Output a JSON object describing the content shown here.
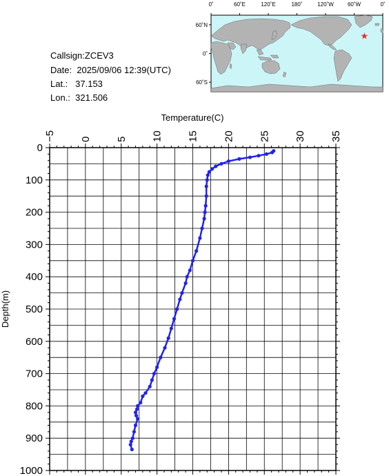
{
  "info": {
    "callsign_label": "Callsign:",
    "callsign": "ZCEV3",
    "date_label": "Date:",
    "date": "2025/09/06 12:39(UTC)",
    "lat_label": "Lat.:",
    "lat": "37.153",
    "lon_label": "Lon.:",
    "lon": "321.506"
  },
  "map": {
    "lon_ticks": [
      "0˚",
      "60˚E",
      "120˚E",
      "180˚",
      "120˚W",
      "60˚W",
      "0˚"
    ],
    "lat_ticks": [
      "60˚N",
      "0˚",
      "60˚S"
    ],
    "ocean_color": "#ccf5f8",
    "land_color": "#b3b3b3",
    "marker_color": "#ff2020",
    "marker_lat": 37.153,
    "marker_lon": 321.506
  },
  "chart_data": {
    "type": "line",
    "xlabel": "Temperature(C)",
    "ylabel": "Depth(m)",
    "xlim": [
      -5,
      35
    ],
    "ylim": [
      1000,
      0
    ],
    "x_ticks": [
      "-5",
      "0",
      "5",
      "10",
      "15",
      "20",
      "25",
      "30",
      "35"
    ],
    "y_ticks": [
      "0",
      "100",
      "200",
      "300",
      "400",
      "500",
      "600",
      "700",
      "800",
      "900",
      "1000"
    ],
    "grid": true,
    "line_color": "#2222ee",
    "series": [
      {
        "x": [
          26.3,
          26.1,
          25.3,
          24.2,
          23.0,
          21.5,
          20.0,
          19.0,
          18.2,
          17.7,
          17.3,
          17.1,
          17.0,
          16.9,
          16.9,
          16.8,
          16.7,
          16.6,
          16.3,
          16.0,
          15.5,
          15.0,
          14.6,
          14.2,
          14.0,
          13.5,
          13.2,
          12.8,
          12.4,
          12.0,
          11.6,
          11.1,
          10.5,
          10.0,
          9.6,
          9.3,
          9.0,
          8.4,
          8.0,
          7.7,
          7.3,
          7.2,
          7.0,
          7.1,
          7.3,
          7.0,
          6.8,
          6.6,
          6.4,
          6.3,
          6.5
        ],
        "y": [
          10,
          15,
          20,
          25,
          30,
          35,
          42,
          50,
          58,
          66,
          75,
          85,
          100,
          120,
          150,
          180,
          200,
          220,
          250,
          280,
          320,
          350,
          380,
          400,
          420,
          450,
          470,
          500,
          530,
          560,
          590,
          620,
          650,
          680,
          700,
          720,
          740,
          760,
          770,
          790,
          800,
          810,
          820,
          830,
          840,
          860,
          880,
          900,
          910,
          920,
          935
        ]
      }
    ]
  }
}
